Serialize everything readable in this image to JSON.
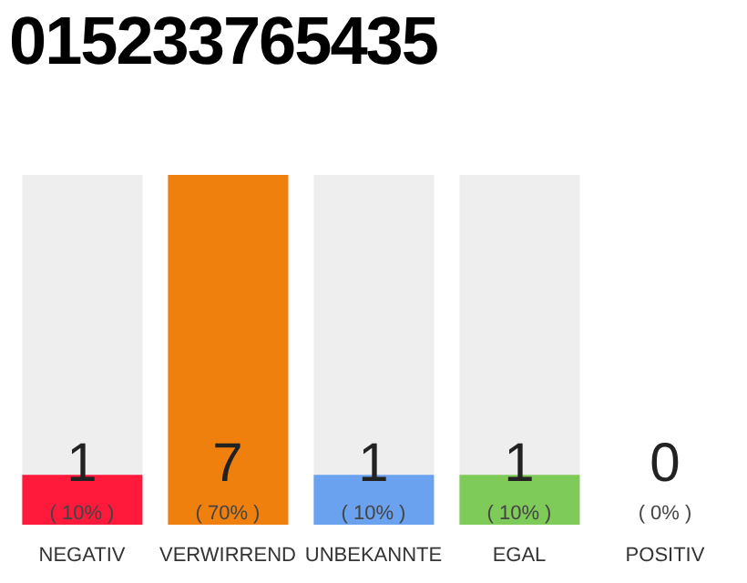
{
  "chart_data": {
    "type": "bar",
    "title": "015233765435",
    "categories": [
      "NEGATIV",
      "VERWIRREND",
      "UNBEKANNTE",
      "EGAL",
      "POSITIV"
    ],
    "values": [
      10,
      70,
      10,
      10,
      0
    ],
    "colors": [
      "#ff1a3c",
      "#f0800e",
      "#6aa2f0",
      "#7ecb5a",
      "#d0d0d0"
    ],
    "value_labels": [
      "( 10% )",
      "( 70% )",
      "( 10% )",
      "( 10% )",
      "( 0% )"
    ],
    "annotations": [
      "1",
      "7",
      "1",
      "1",
      "0"
    ],
    "grid": false,
    "legend": false
  }
}
